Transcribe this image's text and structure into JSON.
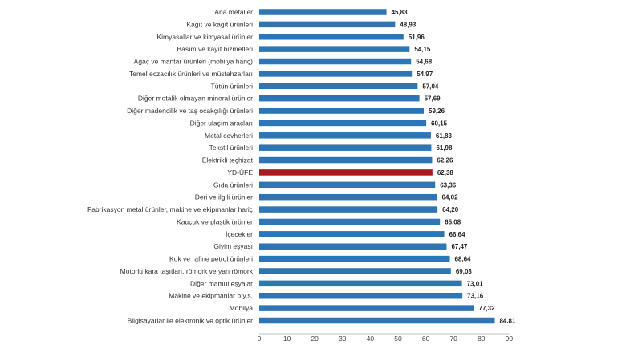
{
  "chart_data": {
    "type": "bar",
    "orientation": "horizontal",
    "categories": [
      "Ana metaller",
      "Kağıt ve kağıt ürünleri",
      "Kimyasallar ve kimyasal ürünler",
      "Basım ve kayıt hizmetleri",
      "Ağaç ve mantar ürünleri (mobilya hariç)",
      "Temel eczacılık ürünleri ve müstahzarları",
      "Tütün ürünleri",
      "Diğer metalik olmayan mineral ürünler",
      "Diğer madencilik ve taş ocakçılığı ürünleri",
      "Diğer ulaşım araçları",
      "Metal cevherleri",
      "Tekstil ürünleri",
      "Elektrikli teçhizat",
      "YD-ÜFE",
      "Gıda ürünleri",
      "Deri ve ilgili ürünler",
      "Fabrikasyon metal ürünler, makine ve ekipmanlar hariç",
      "Kauçuk ve plastik ürünler",
      "İçecekler",
      "Giyim eşyası",
      "Kok ve rafine petrol ürünleri",
      "Motorlu kara taşıtları, römork ve yarı römork",
      "Diğer mamul eşyalar",
      "Makine ve ekipmanlar b.y.s.",
      "Mobilya",
      "Bilgisayarlar ile elektronik ve optik ürünler"
    ],
    "values": [
      45.83,
      48.93,
      51.96,
      54.15,
      54.68,
      54.97,
      57.04,
      57.69,
      59.26,
      60.15,
      61.83,
      61.98,
      62.26,
      62.38,
      63.36,
      64.02,
      64.2,
      65.08,
      66.64,
      67.47,
      68.64,
      69.03,
      73.01,
      73.16,
      77.32,
      84.81
    ],
    "value_labels": [
      "45,83",
      "48,93",
      "51,96",
      "54,15",
      "54,68",
      "54,97",
      "57,04",
      "57,69",
      "59,26",
      "60,15",
      "61,83",
      "61,98",
      "62,26",
      "62,38",
      "63,36",
      "64,02",
      "64,20",
      "65,08",
      "66,64",
      "67,47",
      "68,64",
      "69,03",
      "73,01",
      "73,16",
      "77,32",
      "84.81"
    ],
    "highlight_category": "YD-ÜFE",
    "x_ticks": [
      "0",
      "10",
      "20",
      "30",
      "40",
      "50",
      "60",
      "70",
      "80",
      "90"
    ],
    "xlim": [
      0,
      90
    ],
    "grid": false,
    "colors": {
      "bar": "#2e75b6",
      "highlight": "#a61c1c",
      "axis": "#bfbfbf"
    }
  }
}
